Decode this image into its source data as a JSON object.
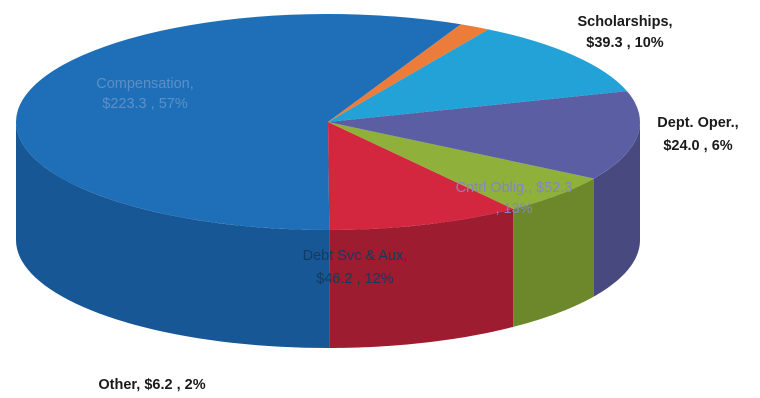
{
  "chart_data": {
    "type": "pie",
    "style": "3d",
    "title": "",
    "slices": [
      {
        "name": "Compensation",
        "value_label": "$223.3",
        "value": 223.3,
        "percent": 57,
        "color": "#1f6fb8",
        "side": "#175796",
        "label_color": "#5c8fc7"
      },
      {
        "name": "Scholarships",
        "value_label": "$39.3",
        "value": 39.3,
        "percent": 10,
        "color": "#d3263f",
        "side": "#9e1c30",
        "label_color": "#1a1a1a"
      },
      {
        "name": "Dept. Oper.",
        "value_label": "$24.0",
        "value": 24.0,
        "percent": 6,
        "color": "#8fb03a",
        "side": "#6d872b",
        "label_color": "#1a1a1a"
      },
      {
        "name": "Cntrl Oblig.",
        "value_label": "$52.3",
        "value": 52.3,
        "percent": 13,
        "color": "#5b5ea3",
        "side": "#47497f",
        "label_color": "#8587bd"
      },
      {
        "name": "Debt Svc & Aux",
        "value_label": "$46.2",
        "value": 46.2,
        "percent": 12,
        "color": "#22a2d6",
        "side": "#1a7ea7",
        "label_color": "#153a5c"
      },
      {
        "name": "Other",
        "value_label": "$6.2",
        "value": 6.2,
        "percent": 2,
        "color": "#ec7c3a",
        "side": "#c0612a",
        "label_color": "#1a1a1a"
      }
    ],
    "labels": [
      {
        "line1": "Compensation,",
        "line2": "$223.3 , 57%"
      },
      {
        "line1": "Scholarships,",
        "line2": "$39.3 , 10%"
      },
      {
        "line1": "Dept. Oper.,",
        "line2": "$24.0 , 6%"
      },
      {
        "line1": "Cntrl Oblig., $52.3",
        "line2": ", 13%"
      },
      {
        "line1": "Debt Svc & Aux,",
        "line2": "$46.2 , 12%"
      },
      {
        "line1": "Other,  $6.2 , 2%",
        "line2": ""
      }
    ]
  }
}
